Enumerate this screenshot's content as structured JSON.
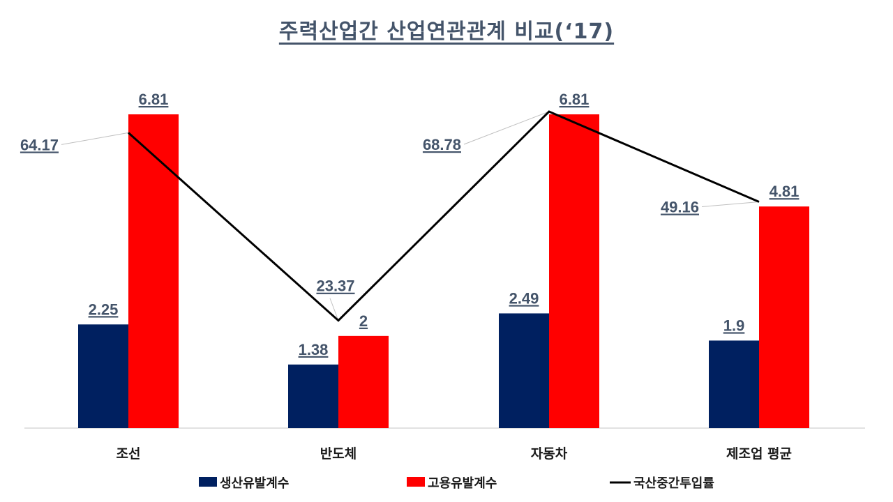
{
  "chart_data": {
    "type": "bar",
    "title": "주력산업간 산업연관관계 비교(‘17)",
    "categories": [
      "조선",
      "반도체",
      "자동차",
      "제조업 평균"
    ],
    "series": [
      {
        "name": "생산유발계수",
        "kind": "bar",
        "color": "#002060",
        "values": [
          2.25,
          1.38,
          2.49,
          1.9
        ]
      },
      {
        "name": "고용유발계수",
        "kind": "bar",
        "color": "#ff0000",
        "values": [
          6.81,
          2,
          6.81,
          4.81
        ]
      },
      {
        "name": "국산중간투입률",
        "kind": "line",
        "color": "#000000",
        "values": [
          64.17,
          23.37,
          68.78,
          49.16
        ]
      }
    ],
    "value_labels": {
      "생산유발계수": [
        "2.25",
        "1.38",
        "2.49",
        "1.9"
      ],
      "고용유발계수": [
        "6.81",
        "2",
        "6.81",
        "4.81"
      ],
      "국산중간투입률": [
        "64.17",
        "23.37",
        "68.78",
        "49.16"
      ]
    },
    "bar_axis_range": [
      0,
      6.81
    ],
    "line_axis_range": [
      0,
      68.78
    ],
    "axis_visible": false,
    "grid": false,
    "legend_position": "bottom"
  }
}
